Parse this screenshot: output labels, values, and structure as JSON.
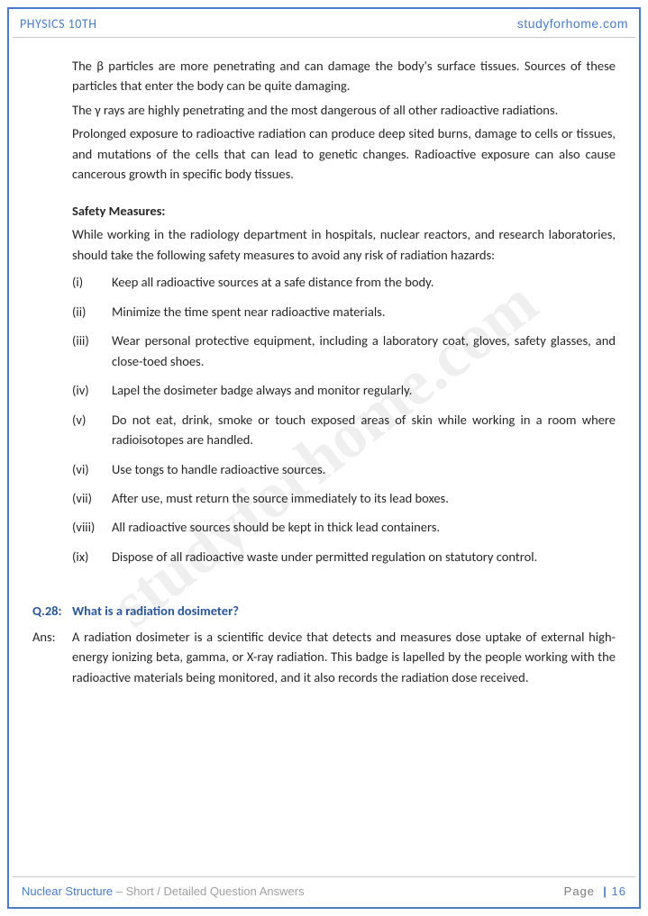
{
  "header": {
    "left": "PHYSICS 10TH",
    "right": "studyforhome.com"
  },
  "watermark": "studyforhome.com",
  "paragraphs": {
    "p1": "The β particles are more penetrating and can damage the body's surface tissues. Sources of these particles that enter the body can be quite damaging.",
    "p2": "The γ rays are highly penetrating and the most dangerous of all other radioactive radiations.",
    "p3": "Prolonged exposure to radioactive radiation can produce deep sited burns, damage to cells or tissues, and mutations of the cells that can lead to genetic changes. Radioactive exposure can also cause cancerous growth in specific body tissues."
  },
  "safety": {
    "heading": "Safety Measures:",
    "intro": "While working in the radiology department in hospitals, nuclear reactors, and research laboratories, should take the following safety measures to avoid any risk of radiation hazards:",
    "items": [
      {
        "num": "(i)",
        "text": "Keep all radioactive sources at a safe distance from the body."
      },
      {
        "num": "(ii)",
        "text": "Minimize the time spent near radioactive materials."
      },
      {
        "num": "(iii)",
        "text": "Wear personal protective equipment, including a laboratory coat, gloves, safety glasses, and close-toed shoes."
      },
      {
        "num": "(iv)",
        "text": "Lapel the dosimeter badge always and monitor regularly."
      },
      {
        "num": "(v)",
        "text": "Do not eat, drink, smoke or touch exposed areas of skin while working in a room where radioisotopes are handled."
      },
      {
        "num": "(vi)",
        "text": "Use tongs to handle radioactive sources."
      },
      {
        "num": "(vii)",
        "text": "After use, must return the source immediately to its lead boxes."
      },
      {
        "num": "(viii)",
        "text": "All radioactive sources should be kept in thick lead containers."
      },
      {
        "num": "(ix)",
        "text": "Dispose of all radioactive waste under permitted regulation on statutory control."
      }
    ]
  },
  "qa": {
    "q_label": "Q.28:",
    "question": "What is a radiation dosimeter?",
    "a_label": "Ans:",
    "answer": "A radiation dosimeter is a scientific device that detects and measures dose uptake of external high-energy ionizing beta, gamma, or X-ray radiation. This badge is lapelled by the people working with the radioactive materials being monitored, and it also records the radiation dose received."
  },
  "footer": {
    "topic": "Nuclear Structure",
    "subtitle": " – Short / Detailed Question Answers",
    "page_word": "Page",
    "page_num": "16"
  },
  "colors": {
    "border": "#4a7bc8",
    "heading": "#2a5599",
    "body_text": "#262626",
    "rule": "#c8c8c8",
    "muted": "#a0a0a0"
  }
}
